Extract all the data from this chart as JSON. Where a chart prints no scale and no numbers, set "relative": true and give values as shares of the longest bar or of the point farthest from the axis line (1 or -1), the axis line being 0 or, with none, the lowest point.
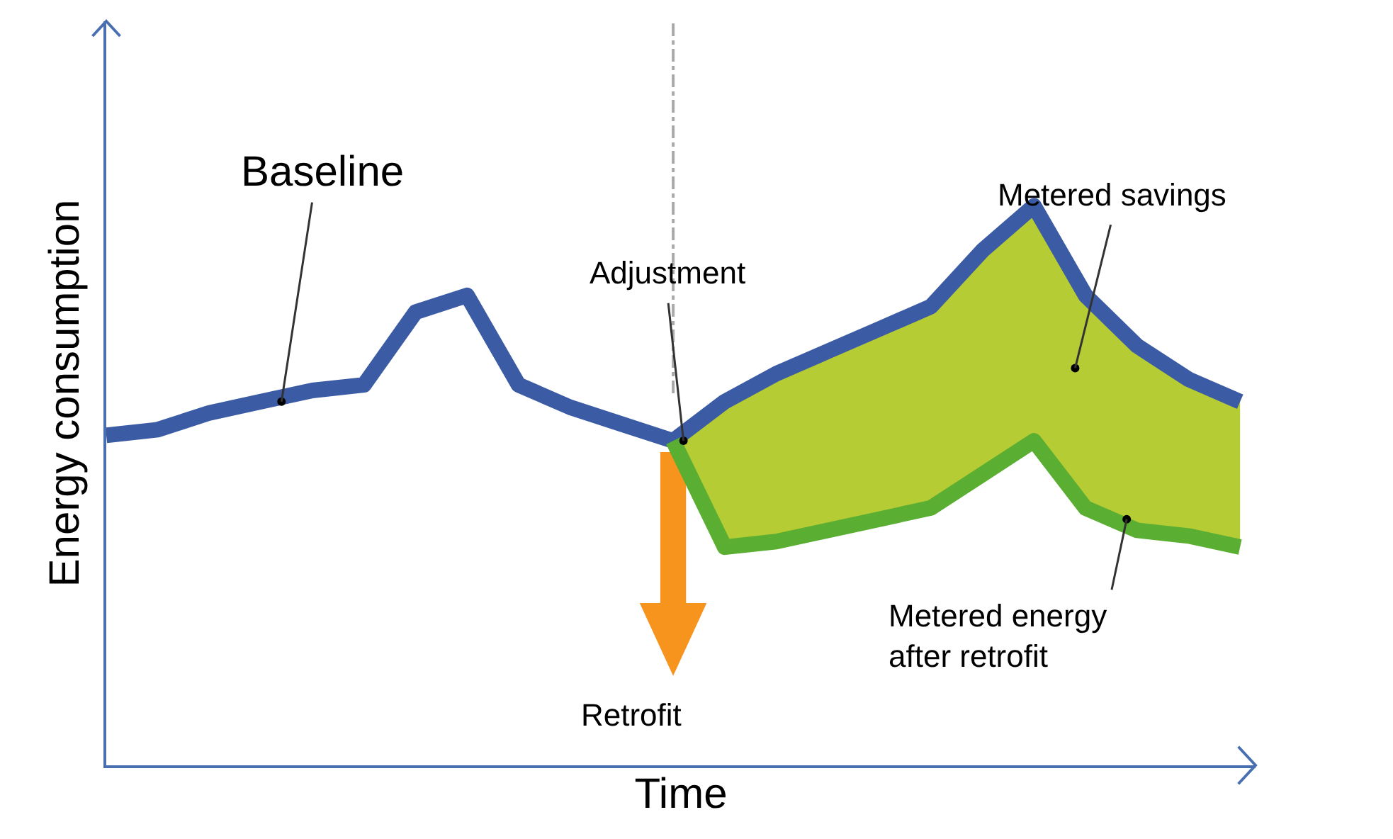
{
  "chart_data": {
    "type": "line",
    "relative": true,
    "xlabel": "Time",
    "ylabel": "Energy consumption",
    "categories": [
      null,
      null,
      null,
      null,
      null,
      null,
      null,
      null,
      null,
      null,
      null,
      null,
      null,
      null,
      null,
      null,
      null,
      null,
      null,
      null,
      null,
      null,
      null
    ],
    "series": [
      {
        "color": "#3b5ba5",
        "values": [
          0.59,
          0.6,
          0.63,
          0.65,
          0.67,
          0.68,
          0.81,
          0.84,
          0.68,
          0.64,
          0.61,
          0.58,
          0.65,
          0.7,
          0.74,
          0.78,
          0.82,
          0.92,
          1,
          0.84,
          0.75,
          0.69,
          0.65
        ]
      },
      {
        "color": "#5aae32",
        "values": [
          null,
          null,
          null,
          null,
          null,
          null,
          null,
          null,
          null,
          null,
          null,
          0.58,
          0.39,
          0.4,
          0.42,
          0.44,
          0.46,
          0.52,
          0.58,
          0.46,
          0.42,
          0.41,
          0.39
        ],
        "lower": [
          null,
          null,
          null,
          null,
          null,
          null,
          null,
          null,
          null,
          null,
          null,
          0.58,
          0.39,
          0.4,
          0.42,
          0.44,
          0.46,
          0.52,
          0.58,
          0.46,
          0.42,
          0.41,
          0.39
        ],
        "upper": [
          null,
          null,
          null,
          null,
          null,
          null,
          null,
          null,
          null,
          null,
          null,
          0.58,
          0.65,
          0.7,
          0.74,
          0.78,
          0.82,
          0.92,
          1,
          0.84,
          0.75,
          0.69,
          0.65
        ]
      }
    ],
    "annotations": [
      "Baseline",
      "Adjustment",
      "Metered savings",
      "Metered energy after retrofit",
      "Retrofit"
    ]
  }
}
